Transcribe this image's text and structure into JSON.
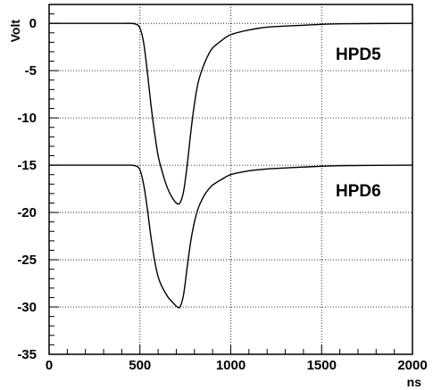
{
  "chart_data": {
    "type": "line",
    "xlabel": "ns",
    "ylabel": "Volt",
    "xlim": [
      0,
      2000
    ],
    "ylim": [
      -35,
      2
    ],
    "grid": true,
    "x_ticks": [
      0,
      500,
      1000,
      1500,
      2000
    ],
    "y_ticks": [
      0,
      -5,
      -10,
      -15,
      -20,
      -25,
      -30,
      -35
    ],
    "series": [
      {
        "name": "HPD5",
        "color": "#000000",
        "x": [
          0,
          100,
          200,
          300,
          400,
          450,
          480,
          500,
          520,
          540,
          560,
          580,
          600,
          620,
          640,
          660,
          680,
          700,
          720,
          740,
          760,
          780,
          800,
          820,
          840,
          860,
          880,
          900,
          950,
          1000,
          1100,
          1200,
          1400,
          1600,
          2000
        ],
        "y": [
          0,
          0,
          0,
          0,
          0,
          0,
          -0.1,
          -0.5,
          -2.0,
          -5.0,
          -8.5,
          -11.5,
          -14.0,
          -15.5,
          -16.8,
          -17.8,
          -18.5,
          -19.0,
          -19.0,
          -17.8,
          -15.0,
          -11.5,
          -8.5,
          -6.3,
          -5.0,
          -4.0,
          -3.2,
          -2.6,
          -1.8,
          -1.2,
          -0.7,
          -0.4,
          -0.2,
          -0.05,
          0
        ]
      },
      {
        "name": "HPD6",
        "color": "#000000",
        "x": [
          0,
          100,
          200,
          300,
          400,
          450,
          480,
          500,
          520,
          540,
          560,
          580,
          600,
          620,
          640,
          660,
          680,
          700,
          720,
          740,
          760,
          780,
          800,
          820,
          840,
          860,
          880,
          900,
          950,
          1000,
          1100,
          1200,
          1400,
          1600,
          2000
        ],
        "y": [
          -15,
          -15,
          -15,
          -15,
          -15,
          -15,
          -15.1,
          -15.5,
          -17.0,
          -19.5,
          -22.5,
          -25.0,
          -26.8,
          -27.8,
          -28.5,
          -29.1,
          -29.5,
          -29.9,
          -30.0,
          -28.7,
          -25.8,
          -23.0,
          -21.0,
          -19.6,
          -18.7,
          -18.0,
          -17.5,
          -17.1,
          -16.5,
          -16.0,
          -15.6,
          -15.4,
          -15.2,
          -15.05,
          -15
        ]
      }
    ]
  }
}
